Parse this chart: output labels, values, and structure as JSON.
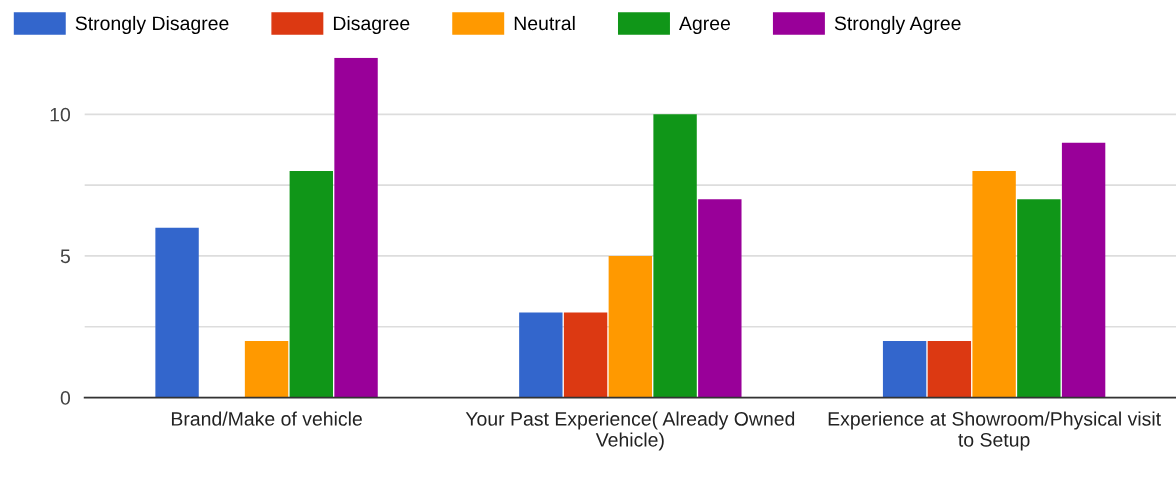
{
  "chart_data": {
    "type": "bar",
    "categories": [
      "Brand/Make of vehicle",
      "Your Past Experience( Already Owned\nVehicle)",
      "Experience at Showroom/Physical visit\nto Setup"
    ],
    "series": [
      {
        "name": "Strongly Disagree",
        "color": "#3366cc",
        "values": [
          6,
          3,
          2
        ]
      },
      {
        "name": "Disagree",
        "color": "#dc3912",
        "values": [
          0,
          3,
          2
        ]
      },
      {
        "name": "Neutral",
        "color": "#ff9900",
        "values": [
          2,
          5,
          8
        ]
      },
      {
        "name": "Agree",
        "color": "#109618",
        "values": [
          8,
          10,
          7
        ]
      },
      {
        "name": "Strongly Agree",
        "color": "#990099",
        "values": [
          12,
          7,
          9
        ]
      }
    ],
    "ylim": [
      0,
      12
    ],
    "yticks": [
      0,
      {
        "value": 2.5,
        "label": null
      },
      5,
      {
        "value": 7.5,
        "label": null
      },
      10
    ],
    "grid": "y",
    "legend": "top left"
  }
}
